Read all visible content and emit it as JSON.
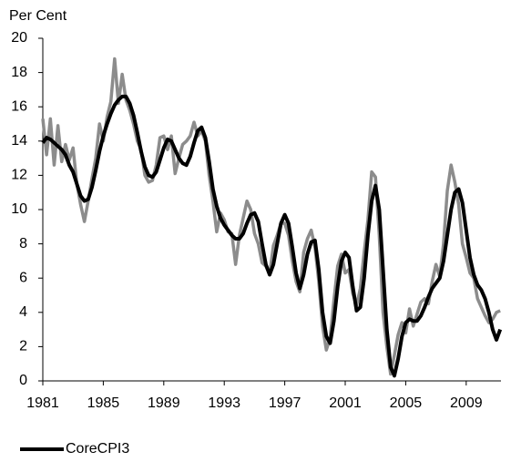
{
  "chart_data": {
    "type": "line",
    "y_label": "Per Cent",
    "x": [
      1981,
      1981.25,
      1981.5,
      1981.75,
      1982,
      1982.25,
      1982.5,
      1982.75,
      1983,
      1983.25,
      1983.5,
      1983.75,
      1984,
      1984.25,
      1984.5,
      1984.75,
      1985,
      1985.25,
      1985.5,
      1985.75,
      1986,
      1986.25,
      1986.5,
      1986.75,
      1987,
      1987.25,
      1987.5,
      1987.75,
      1988,
      1988.25,
      1988.5,
      1988.75,
      1989,
      1989.25,
      1989.5,
      1989.75,
      1990,
      1990.25,
      1990.5,
      1990.75,
      1991,
      1991.25,
      1991.5,
      1991.75,
      1992,
      1992.25,
      1992.5,
      1992.75,
      1993,
      1993.25,
      1993.5,
      1993.75,
      1994,
      1994.25,
      1994.5,
      1994.75,
      1995,
      1995.25,
      1995.5,
      1995.75,
      1996,
      1996.25,
      1996.5,
      1996.75,
      1997,
      1997.25,
      1997.5,
      1997.75,
      1998,
      1998.25,
      1998.5,
      1998.75,
      1999,
      1999.25,
      1999.5,
      1999.75,
      2000,
      2000.25,
      2000.5,
      2000.75,
      2001,
      2001.25,
      2001.5,
      2001.75,
      2002,
      2002.25,
      2002.5,
      2002.75,
      2003,
      2003.25,
      2003.5,
      2003.75,
      2004,
      2004.25,
      2004.5,
      2004.75,
      2005,
      2005.25,
      2005.5,
      2005.75,
      2006,
      2006.25,
      2006.5,
      2006.75,
      2007,
      2007.25,
      2007.5,
      2007.75,
      2008,
      2008.25,
      2008.5,
      2008.75,
      2009,
      2009.25,
      2009.5,
      2009.75,
      2010,
      2010.25,
      2010.5,
      2010.75,
      2011,
      2011.25
    ],
    "series": [
      {
        "color": "#8c8c8c",
        "values": [
          15.3,
          13.2,
          15.3,
          12.6,
          14.9,
          12.8,
          13.8,
          12.9,
          13.6,
          11.5,
          10.3,
          9.3,
          10.5,
          11.8,
          13.0,
          15.0,
          14.0,
          15.4,
          16.3,
          18.8,
          16.2,
          17.9,
          16.4,
          15.8,
          15.0,
          14.0,
          13.5,
          12.0,
          11.6,
          11.7,
          12.6,
          14.2,
          14.3,
          13.5,
          14.3,
          12.1,
          13.0,
          13.8,
          14.0,
          14.3,
          15.1,
          14.3,
          14.6,
          14.0,
          12.0,
          10.5,
          8.7,
          9.8,
          9.4,
          8.7,
          8.6,
          6.8,
          8.5,
          9.5,
          10.5,
          10.0,
          8.6,
          8.0,
          6.9,
          6.7,
          6.2,
          7.9,
          8.5,
          9.2,
          9.2,
          8.5,
          7.0,
          5.8,
          5.2,
          7.5,
          8.3,
          8.8,
          7.8,
          5.8,
          3.2,
          1.8,
          2.5,
          4.7,
          6.7,
          7.4,
          6.3,
          6.5,
          5.1,
          4.4,
          5.4,
          7.5,
          9.4,
          12.2,
          11.9,
          8.5,
          4.0,
          2.0,
          0.4,
          1.5,
          2.7,
          3.4,
          2.8,
          4.2,
          3.2,
          3.9,
          4.6,
          4.8,
          4.5,
          5.8,
          6.8,
          6.1,
          8.0,
          11.1,
          12.6,
          11.6,
          10.3,
          8.0,
          7.2,
          6.3,
          6.0,
          4.8,
          4.3,
          3.8,
          3.4,
          3.6,
          4.0,
          4.1
        ]
      },
      {
        "name": "CoreCPI3",
        "color": "#000000",
        "values": [
          13.9,
          14.2,
          14.1,
          13.9,
          13.7,
          13.5,
          13.2,
          12.6,
          12.2,
          11.5,
          10.8,
          10.5,
          10.6,
          11.3,
          12.3,
          13.4,
          14.3,
          15.0,
          15.6,
          16.1,
          16.4,
          16.6,
          16.6,
          16.2,
          15.5,
          14.5,
          13.4,
          12.5,
          12.0,
          11.9,
          12.2,
          12.9,
          13.6,
          14.1,
          14.0,
          13.5,
          13.0,
          12.7,
          12.6,
          13.1,
          13.9,
          14.6,
          14.8,
          14.2,
          12.8,
          11.2,
          10.2,
          9.5,
          9.1,
          8.8,
          8.5,
          8.3,
          8.3,
          8.6,
          9.2,
          9.7,
          9.8,
          9.3,
          8.0,
          6.8,
          6.2,
          6.8,
          8.0,
          9.2,
          9.7,
          9.2,
          7.8,
          6.3,
          5.4,
          6.2,
          7.4,
          8.1,
          8.2,
          6.5,
          4.0,
          2.6,
          2.2,
          3.5,
          5.5,
          7.0,
          7.5,
          7.2,
          5.5,
          4.1,
          4.3,
          6.0,
          8.5,
          10.5,
          11.4,
          10.0,
          6.5,
          3.0,
          0.8,
          0.3,
          1.3,
          2.6,
          3.4,
          3.6,
          3.5,
          3.5,
          3.8,
          4.3,
          4.9,
          5.4,
          5.7,
          6.0,
          7.0,
          8.5,
          10.0,
          11.0,
          11.2,
          10.4,
          8.8,
          7.2,
          6.2,
          5.6,
          5.3,
          4.8,
          4.0,
          3.0,
          2.4,
          3.0
        ]
      }
    ],
    "xlim": [
      1981,
      2011.3
    ],
    "xticks": [
      1981,
      1985,
      1989,
      1993,
      1997,
      2001,
      2005,
      2009
    ],
    "ylim": [
      0,
      20
    ],
    "yticks": [
      0,
      2,
      4,
      6,
      8,
      10,
      12,
      14,
      16,
      18,
      20
    ],
    "grid": false,
    "legend": "bottom-left"
  }
}
